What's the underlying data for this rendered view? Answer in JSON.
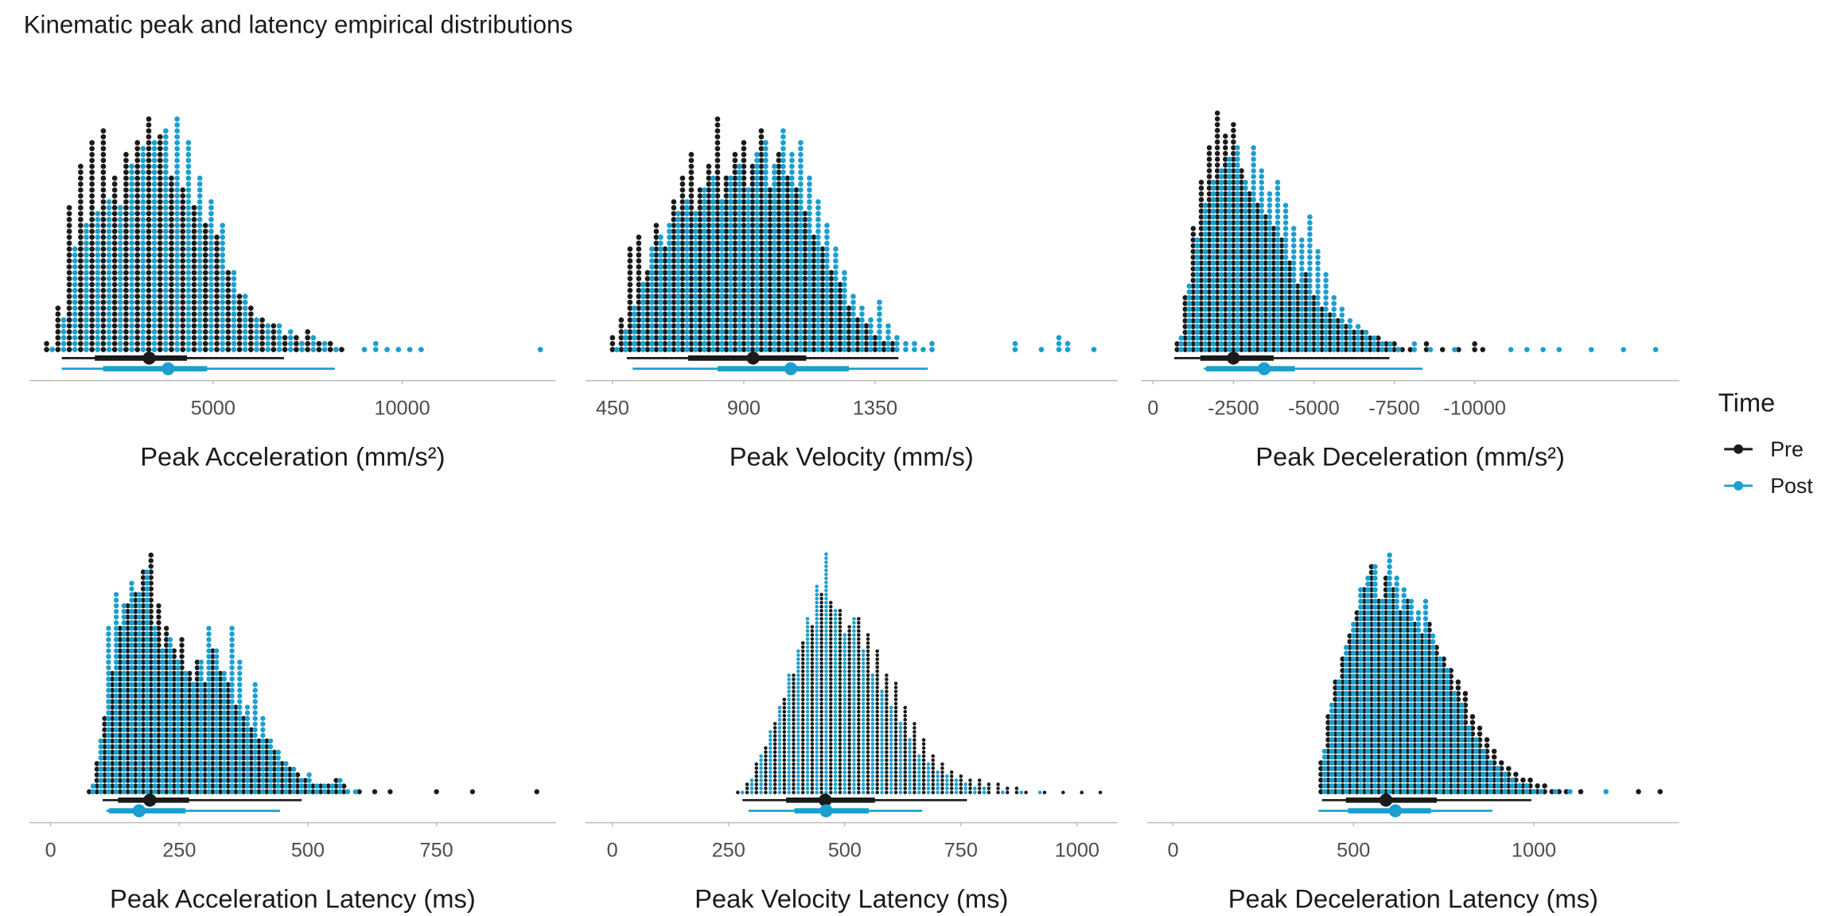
{
  "title": "Kinematic peak and latency empirical distributions",
  "legend_title": "Time",
  "chart_data": [
    {
      "type": "dotplot",
      "x_label": "Peak Acceleration (mm/s²)",
      "xlim": [
        150,
        14060
      ],
      "xticks": [
        5000,
        10000
      ],
      "series": [
        {
          "name": "Pre",
          "color": "#1a1a1a",
          "x": [
            600,
            900,
            1200,
            1500,
            1800,
            2100,
            2400,
            2700,
            3000,
            3300,
            3600,
            3900,
            4200,
            4500,
            4800,
            5100,
            5400,
            5700,
            6000,
            6300,
            6600,
            6900,
            7200,
            7500,
            7800,
            8100,
            8400
          ],
          "values": [
            2,
            8,
            25,
            32,
            36,
            38,
            30,
            34,
            36,
            40,
            37,
            30,
            28,
            25,
            22,
            20,
            14,
            10,
            8,
            6,
            5,
            3,
            3,
            4,
            2,
            2,
            1
          ],
          "median": 3312,
          "interval_66": [
            1875,
            4312
          ],
          "interval_95": [
            1000,
            6875
          ]
        },
        {
          "name": "Post",
          "color": "#1b9fd0",
          "x": [
            750,
            1050,
            1350,
            1650,
            1950,
            2250,
            2550,
            2850,
            3150,
            3450,
            3750,
            4050,
            4350,
            4650,
            4950,
            5250,
            5550,
            5850,
            6150,
            6450,
            6750,
            7050,
            7350,
            7650,
            7950,
            8250,
            9000,
            9300,
            9600,
            9900,
            10200,
            10500,
            13650
          ],
          "values": [
            1,
            6,
            18,
            22,
            24,
            26,
            25,
            32,
            35,
            36,
            38,
            40,
            36,
            30,
            26,
            22,
            14,
            10,
            6,
            5,
            5,
            4,
            2,
            3,
            2,
            1,
            1,
            2,
            1,
            1,
            1,
            1,
            1
          ],
          "median": 3812,
          "interval_66": [
            2094,
            4844
          ],
          "interval_95": [
            1000,
            8219
          ]
        }
      ]
    },
    {
      "type": "dotplot",
      "x_label": "Peak Velocity (mm/s)",
      "xlim": [
        357,
        2181
      ],
      "xticks": [
        450,
        900,
        1350
      ],
      "series": [
        {
          "name": "Pre",
          "color": "#1a1a1a",
          "x": [
            450,
            480,
            510,
            540,
            570,
            600,
            630,
            660,
            690,
            720,
            750,
            780,
            810,
            840,
            870,
            900,
            930,
            960,
            990,
            1020,
            1050,
            1080,
            1110,
            1140,
            1170,
            1200,
            1230,
            1260,
            1290,
            1320,
            1350,
            1380,
            1410
          ],
          "values": [
            3,
            6,
            18,
            20,
            14,
            22,
            18,
            26,
            30,
            34,
            28,
            32,
            40,
            30,
            34,
            36,
            32,
            38,
            28,
            34,
            30,
            28,
            24,
            20,
            18,
            14,
            12,
            8,
            6,
            5,
            3,
            2,
            2
          ],
          "median": 932,
          "interval_66": [
            709,
            1114
          ],
          "interval_95": [
            499,
            1430
          ]
        },
        {
          "name": "Post",
          "color": "#1b9fd0",
          "x": [
            465,
            495,
            525,
            555,
            585,
            615,
            645,
            675,
            705,
            735,
            765,
            795,
            825,
            855,
            885,
            915,
            945,
            975,
            1005,
            1035,
            1065,
            1095,
            1125,
            1155,
            1185,
            1215,
            1245,
            1275,
            1305,
            1335,
            1365,
            1395,
            1425,
            1455,
            1485,
            1515,
            1545,
            1830,
            1920,
            1980,
            2010,
            2100
          ],
          "values": [
            1,
            4,
            8,
            12,
            18,
            20,
            22,
            24,
            26,
            24,
            28,
            30,
            26,
            30,
            32,
            28,
            34,
            36,
            32,
            38,
            34,
            36,
            30,
            26,
            22,
            18,
            14,
            10,
            8,
            6,
            9,
            5,
            3,
            2,
            2,
            1,
            2,
            2,
            1,
            3,
            2,
            1
          ],
          "median": 1061,
          "interval_66": [
            810,
            1260
          ],
          "interval_95": [
            519,
            1531
          ]
        }
      ]
    },
    {
      "type": "dotplot",
      "x_label": "Peak Deceleration (mm/s²)",
      "xlim": [
        368,
        -16360
      ],
      "xticks": [
        0,
        -2500,
        -5000,
        -7500,
        -10000
      ],
      "series": [
        {
          "name": "Pre",
          "color": "#1a1a1a",
          "x": [
            -750,
            -1000,
            -1250,
            -1500,
            -1750,
            -2000,
            -2250,
            -2500,
            -2750,
            -3000,
            -3250,
            -3500,
            -3750,
            -4000,
            -4250,
            -4500,
            -4750,
            -5000,
            -5250,
            -5500,
            -5750,
            -6000,
            -6250,
            -6500,
            -6750,
            -7000,
            -7250,
            -7500,
            -7750,
            -8000,
            -8500,
            -9000,
            -9500,
            -10000,
            -10250
          ],
          "values": [
            2,
            10,
            22,
            30,
            36,
            42,
            38,
            40,
            32,
            28,
            26,
            24,
            22,
            20,
            16,
            12,
            14,
            10,
            8,
            7,
            6,
            5,
            4,
            4,
            3,
            3,
            2,
            2,
            1,
            1,
            2,
            1,
            1,
            2,
            1
          ],
          "median": -2500,
          "interval_66": [
            -1470,
            -3750
          ],
          "interval_95": [
            -660,
            -7350
          ]
        },
        {
          "name": "Post",
          "color": "#1b9fd0",
          "x": [
            -875,
            -1125,
            -1375,
            -1625,
            -1875,
            -2125,
            -2375,
            -2625,
            -2875,
            -3125,
            -3375,
            -3625,
            -3875,
            -4125,
            -4375,
            -4625,
            -4875,
            -5125,
            -5375,
            -5625,
            -5875,
            -6125,
            -6375,
            -6625,
            -6875,
            -7125,
            -7375,
            -7625,
            -8125,
            -8625,
            -9375,
            -11125,
            -11625,
            -12125,
            -12625,
            -13625,
            -14625,
            -15625
          ],
          "values": [
            3,
            12,
            20,
            26,
            30,
            32,
            34,
            36,
            30,
            36,
            32,
            28,
            30,
            26,
            22,
            20,
            24,
            18,
            14,
            10,
            8,
            6,
            5,
            4,
            3,
            2,
            2,
            1,
            2,
            1,
            1,
            1,
            1,
            1,
            1,
            1,
            1,
            1
          ],
          "median": -3455,
          "interval_66": [
            -1650,
            -4410
          ],
          "interval_95": [
            -1580,
            -8380
          ]
        }
      ]
    },
    {
      "type": "dotplot",
      "x_label": "Peak Acceleration Latency (ms)",
      "xlim": [
        -41,
        982
      ],
      "xticks": [
        0,
        250,
        500,
        750
      ],
      "series": [
        {
          "name": "Pre",
          "color": "#1a1a1a",
          "x": [
            75,
            90,
            105,
            120,
            135,
            150,
            165,
            180,
            195,
            210,
            225,
            240,
            255,
            270,
            285,
            300,
            315,
            330,
            345,
            360,
            375,
            390,
            405,
            420,
            435,
            450,
            465,
            480,
            495,
            510,
            525,
            540,
            555,
            570,
            600,
            630,
            660,
            750,
            820,
            945
          ],
          "values": [
            1,
            6,
            14,
            22,
            30,
            34,
            36,
            40,
            43,
            34,
            30,
            26,
            28,
            22,
            24,
            20,
            26,
            22,
            20,
            16,
            14,
            12,
            10,
            10,
            8,
            6,
            5,
            4,
            3,
            2,
            2,
            2,
            3,
            2,
            1,
            1,
            1,
            1,
            1,
            1
          ],
          "median": 193,
          "interval_66": [
            131,
            269
          ],
          "interval_95": [
            101,
            488
          ]
        },
        {
          "name": "Post",
          "color": "#1b9fd0",
          "x": [
            82.5,
            97.5,
            112.5,
            127.5,
            142.5,
            157.5,
            172.5,
            187.5,
            202.5,
            217.5,
            232.5,
            247.5,
            262.5,
            277.5,
            292.5,
            307.5,
            322.5,
            337.5,
            352.5,
            367.5,
            382.5,
            397.5,
            412.5,
            427.5,
            442.5,
            457.5,
            472.5,
            487.5,
            502.5,
            517.5,
            532.5,
            547.5,
            562.5,
            577.5,
            592.5
          ],
          "values": [
            2,
            10,
            30,
            36,
            34,
            38,
            36,
            40,
            30,
            26,
            28,
            24,
            22,
            20,
            24,
            30,
            26,
            22,
            30,
            24,
            16,
            20,
            14,
            10,
            8,
            6,
            5,
            3,
            4,
            2,
            2,
            2,
            3,
            1,
            1
          ],
          "median": 172,
          "interval_66": [
            113,
            262
          ],
          "interval_95": [
            108,
            446
          ]
        }
      ]
    },
    {
      "type": "dotplot",
      "x_label": "Peak Velocity Latency (ms)",
      "xlim": [
        -58,
        1087
      ],
      "xticks": [
        0,
        250,
        500,
        750,
        1000
      ],
      "series": [
        {
          "name": "Pre",
          "color": "#1a1a1a",
          "x": [
            270,
            290,
            310,
            330,
            350,
            370,
            390,
            410,
            430,
            450,
            470,
            490,
            510,
            530,
            550,
            570,
            590,
            610,
            630,
            650,
            670,
            690,
            710,
            730,
            750,
            770,
            790,
            810,
            830,
            850,
            870,
            890,
            930,
            970,
            1010,
            1050
          ],
          "values": [
            1,
            3,
            8,
            12,
            18,
            24,
            30,
            38,
            42,
            50,
            48,
            46,
            42,
            44,
            40,
            36,
            30,
            28,
            22,
            18,
            14,
            10,
            8,
            6,
            5,
            4,
            4,
            3,
            3,
            2,
            2,
            1,
            1,
            1,
            1,
            1
          ],
          "median": 458,
          "interval_66": [
            374,
            565
          ],
          "interval_95": [
            280,
            763
          ]
        },
        {
          "name": "Post",
          "color": "#1b9fd0",
          "x": [
            280,
            300,
            320,
            340,
            360,
            380,
            400,
            420,
            440,
            460,
            480,
            500,
            520,
            540,
            560,
            580,
            600,
            620,
            640,
            660,
            680,
            700,
            720,
            740,
            760,
            780,
            800,
            840,
            880,
            920
          ],
          "values": [
            1,
            4,
            10,
            16,
            22,
            30,
            36,
            44,
            52,
            60,
            46,
            40,
            44,
            36,
            30,
            26,
            22,
            18,
            14,
            10,
            8,
            6,
            5,
            4,
            3,
            2,
            2,
            1,
            1,
            1
          ],
          "median": 460,
          "interval_66": [
            392,
            552
          ],
          "interval_95": [
            293,
            667
          ]
        }
      ]
    },
    {
      "type": "dotplot",
      "x_label": "Peak Deceleration Latency (ms)",
      "xlim": [
        -72,
        1403
      ],
      "xticks": [
        0,
        500,
        1000
      ],
      "series": [
        {
          "name": "Pre",
          "color": "#1a1a1a",
          "x": [
            410,
            430,
            450,
            470,
            490,
            510,
            530,
            550,
            570,
            590,
            610,
            630,
            650,
            670,
            690,
            710,
            730,
            750,
            770,
            790,
            810,
            830,
            850,
            870,
            890,
            910,
            930,
            950,
            970,
            990,
            1010,
            1030,
            1050,
            1070,
            1090,
            1130,
            1290,
            1350
          ],
          "values": [
            6,
            14,
            20,
            24,
            28,
            32,
            36,
            40,
            34,
            38,
            36,
            32,
            34,
            30,
            28,
            30,
            26,
            24,
            22,
            20,
            18,
            14,
            12,
            10,
            8,
            6,
            5,
            4,
            3,
            3,
            2,
            2,
            1,
            1,
            1,
            1,
            1,
            1
          ],
          "median": 590,
          "interval_66": [
            479,
            731
          ],
          "interval_95": [
            413,
            993
          ]
        },
        {
          "name": "Post",
          "color": "#1b9fd0",
          "x": [
            420,
            440,
            460,
            480,
            500,
            520,
            540,
            560,
            580,
            600,
            620,
            640,
            660,
            680,
            700,
            720,
            740,
            760,
            780,
            800,
            820,
            840,
            860,
            880,
            900,
            920,
            940,
            960,
            980,
            1000,
            1020,
            1060,
            1100,
            1200
          ],
          "values": [
            8,
            16,
            20,
            26,
            30,
            36,
            38,
            40,
            34,
            42,
            38,
            36,
            34,
            32,
            34,
            28,
            24,
            22,
            18,
            16,
            12,
            10,
            8,
            6,
            5,
            4,
            3,
            2,
            2,
            1,
            1,
            1,
            1,
            1
          ],
          "median": 616,
          "interval_66": [
            485,
            715
          ],
          "interval_95": [
            403,
            885
          ]
        }
      ]
    }
  ]
}
